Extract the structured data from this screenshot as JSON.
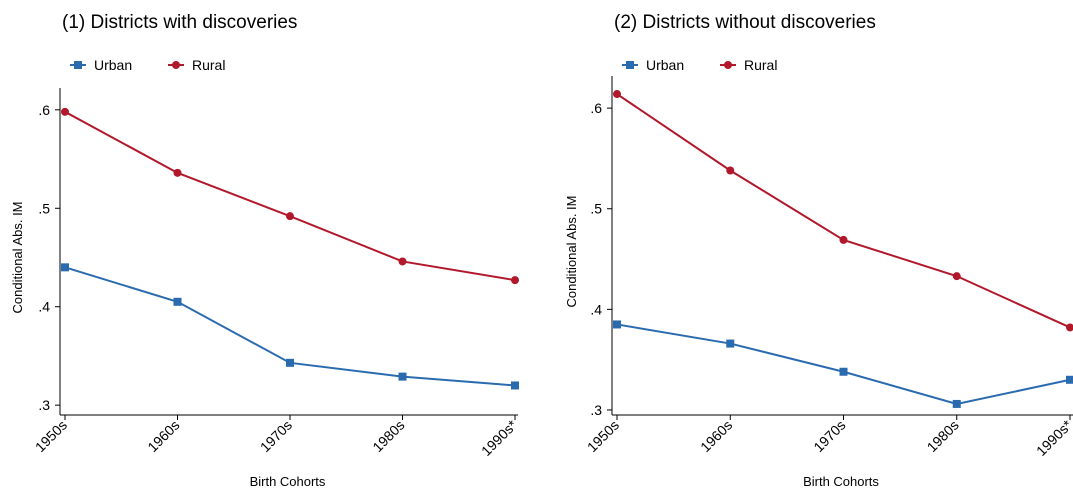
{
  "chart_data": [
    {
      "type": "line",
      "title": "(1) Districts with discoveries",
      "xlabel": "Birth Cohorts",
      "ylabel": "Conditional Abs. IM",
      "categories": [
        "1950s",
        "1960s",
        "1970s",
        "1980s",
        "1990s*"
      ],
      "yticks": [
        ".3",
        ".4",
        ".5",
        ".6"
      ],
      "ytick_values": [
        0.3,
        0.4,
        0.5,
        0.6
      ],
      "ylim": [
        0.29,
        0.61
      ],
      "grid": false,
      "legend_position": "top-left",
      "series": [
        {
          "name": "Urban",
          "color": "#2a6bb0",
          "marker": "square",
          "values": [
            0.44,
            0.405,
            0.343,
            0.329,
            0.32
          ]
        },
        {
          "name": "Rural",
          "color": "#b2182b",
          "marker": "circle",
          "values": [
            0.598,
            0.536,
            0.492,
            0.446,
            0.427
          ]
        }
      ]
    },
    {
      "type": "line",
      "title": "(2) Districts without discoveries",
      "xlabel": "Birth Cohorts",
      "ylabel": "Conditional Abs. IM",
      "categories": [
        "1950s",
        "1960s",
        "1970s",
        "1980s",
        "1990s*"
      ],
      "yticks": [
        ".3",
        ".4",
        ".5",
        ".6"
      ],
      "ytick_values": [
        0.3,
        0.4,
        0.5,
        0.6
      ],
      "ylim": [
        0.295,
        0.62
      ],
      "grid": false,
      "legend_position": "top-left",
      "series": [
        {
          "name": "Urban",
          "color": "#2a6bb0",
          "marker": "square",
          "values": [
            0.385,
            0.366,
            0.338,
            0.306,
            0.33
          ]
        },
        {
          "name": "Rural",
          "color": "#b2182b",
          "marker": "circle",
          "values": [
            0.614,
            0.538,
            0.469,
            0.433,
            0.382
          ]
        }
      ]
    }
  ]
}
